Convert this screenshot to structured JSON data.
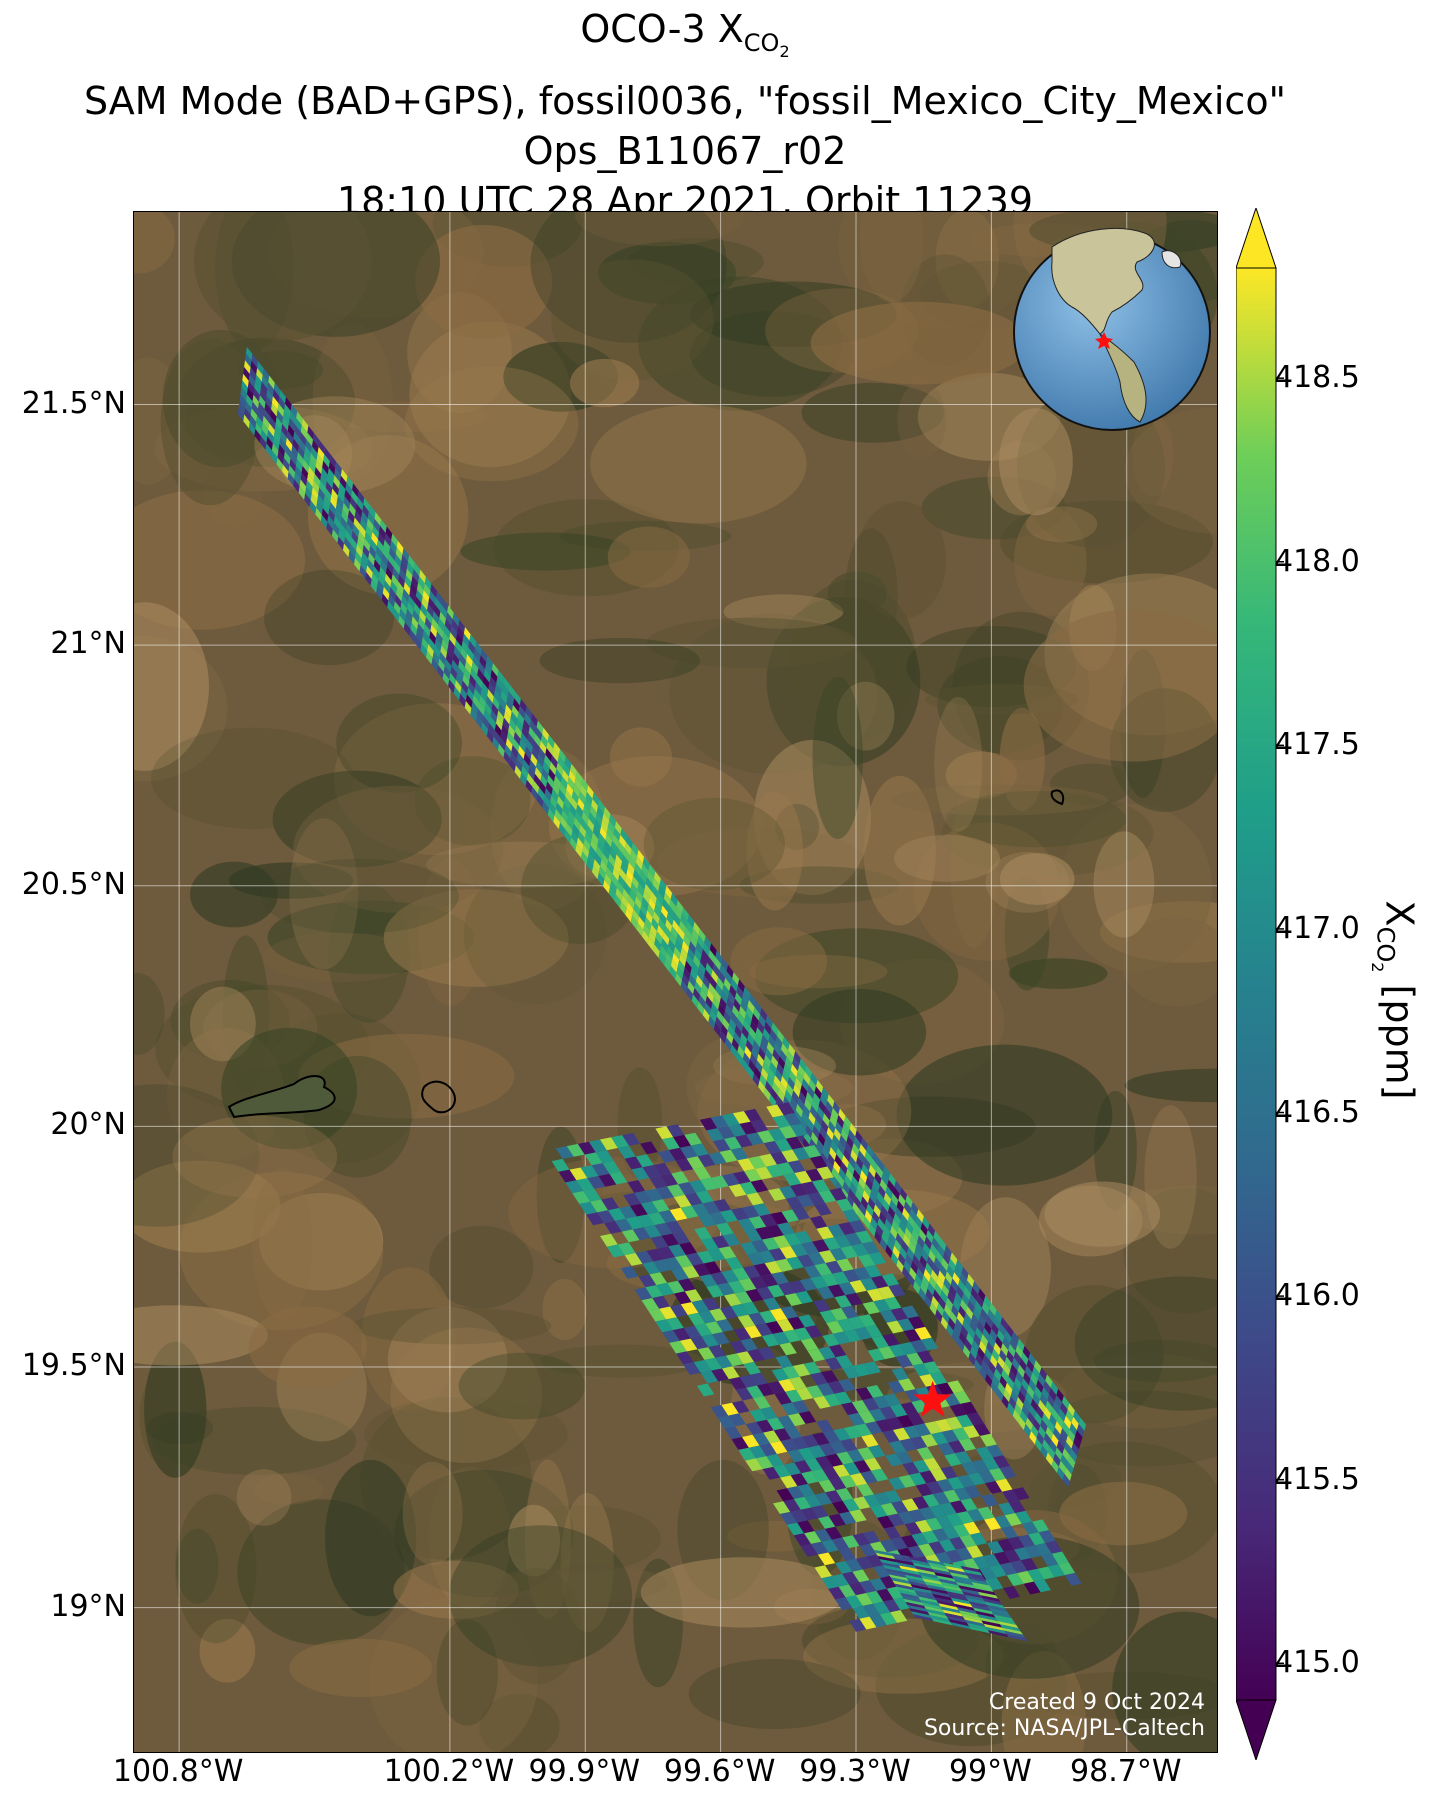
{
  "title": {
    "line1_prefix": "OCO-3 X",
    "line1_sub": "CO",
    "line1_subsub": "2",
    "line2": "SAM Mode (BAD+GPS), fossil0036, \"fossil_Mexico_City_Mexico\"",
    "line3": "Ops_B11067_r02",
    "line4": "18:10 UTC 28 Apr 2021, Orbit 11239"
  },
  "axes": {
    "lat_ticks": [
      "21.5°N",
      "21°N",
      "20.5°N",
      "20°N",
      "19.5°N",
      "19°N"
    ],
    "lon_ticks": [
      "100.8°W",
      "100.2°W",
      "99.9°W",
      "99.6°W",
      "99.3°W",
      "99°W",
      "98.7°W"
    ],
    "lat_values": [
      21.5,
      21.0,
      20.5,
      20.0,
      19.5,
      19.0
    ],
    "lon_values": [
      -100.8,
      -100.2,
      -99.9,
      -99.6,
      -99.3,
      -99.0,
      -98.7
    ],
    "lat_range": [
      18.7,
      21.9
    ],
    "lon_range": [
      -100.9,
      -98.5
    ]
  },
  "colorbar": {
    "label_prefix": "X",
    "label_sub": "CO",
    "label_subsub": "2",
    "label_suffix": " [ppm]",
    "ticks": [
      "418.5",
      "418.0",
      "417.5",
      "417.0",
      "416.5",
      "416.0",
      "415.5",
      "415.0"
    ],
    "tick_values": [
      418.5,
      418.0,
      417.5,
      417.0,
      416.5,
      416.0,
      415.5,
      415.0
    ],
    "range": [
      414.9,
      418.8
    ],
    "colormap": "viridis",
    "extend": "both"
  },
  "map": {
    "basemap": "satellite imagery",
    "gridlines": true,
    "target_marker": {
      "type": "red-star",
      "lat": 19.43,
      "lon": -99.13
    },
    "inset_globe": {
      "center": "North America",
      "marker": "red-star at Mexico City"
    },
    "swaths": [
      {
        "name": "northern-swath",
        "corners_lat_lon": [
          [
            21.62,
            -100.65
          ],
          [
            21.48,
            -100.67
          ],
          [
            19.25,
            -98.83
          ],
          [
            19.38,
            -98.79
          ]
        ]
      },
      {
        "name": "western-southern-swath",
        "corners_lat_lon": [
          [
            19.95,
            -99.99
          ],
          [
            20.05,
            -99.45
          ],
          [
            19.05,
            -98.8
          ],
          [
            18.95,
            -99.3
          ]
        ]
      },
      {
        "name": "southern-strip",
        "corners_lat_lon": [
          [
            19.12,
            -99.26
          ],
          [
            19.08,
            -99.03
          ],
          [
            18.93,
            -98.92
          ],
          [
            18.98,
            -99.17
          ]
        ]
      }
    ]
  },
  "credits": {
    "created": "Created 9 Oct 2024",
    "source": "Source: NASA/JPL-Caltech"
  }
}
